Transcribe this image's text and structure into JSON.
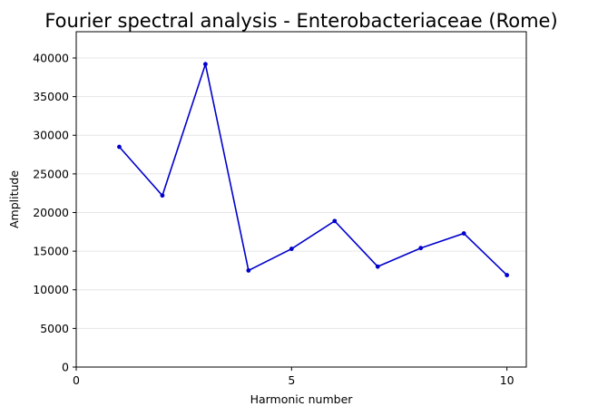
{
  "chart_data": {
    "type": "line",
    "title": "Fourier spectral analysis - Enterobacteriaceae (Rome)",
    "xlabel": "Harmonic number",
    "ylabel": "Amplitude",
    "xlim": [
      0,
      10.45
    ],
    "ylim": [
      0,
      43400
    ],
    "xticks": [
      0,
      5,
      10
    ],
    "yticks": [
      0,
      5000,
      10000,
      15000,
      20000,
      25000,
      30000,
      35000,
      40000
    ],
    "grid": "horizontal",
    "series": [
      {
        "color": "#0000cc",
        "marker": "dot",
        "x": [
          1,
          2,
          3,
          4,
          5,
          6,
          7,
          8,
          9,
          10
        ],
        "values": [
          28500,
          22200,
          39200,
          12500,
          15300,
          18900,
          13000,
          15400,
          17300,
          11900
        ]
      }
    ]
  }
}
